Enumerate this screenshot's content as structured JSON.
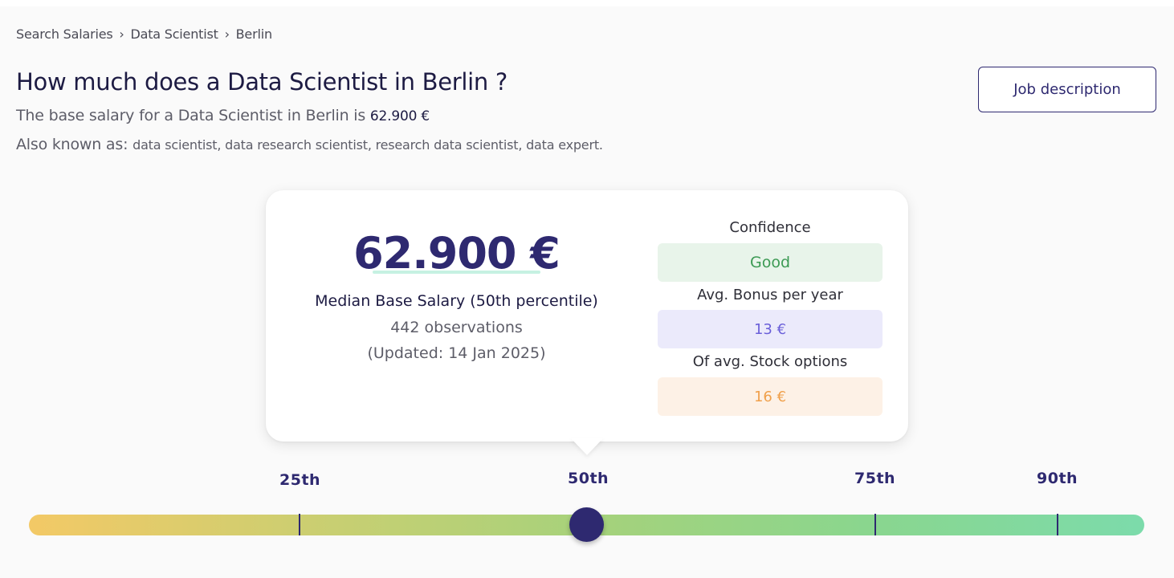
{
  "breadcrumb": {
    "items": [
      "Search Salaries",
      "Data Scientist",
      "Berlin"
    ],
    "separator": "›"
  },
  "header": {
    "title": "How much does a Data Scientist in Berlin ?",
    "base_prefix": "The base salary for a Data Scientist in Berlin is",
    "base_amount": "62.900 €",
    "aka_prefix": "Also known as:",
    "aka_list": "data scientist, data research scientist, research data scientist, data expert.",
    "job_button_label": "Job description"
  },
  "summary_card": {
    "median_value": "62.900 €",
    "median_label": "Median Base Salary (50th percentile)",
    "observations": "442 observations",
    "updated": "(Updated: 14 Jan 2025)",
    "confidence_heading": "Confidence",
    "confidence_value": "Good",
    "bonus_heading": "Avg. Bonus per year",
    "bonus_value": "13 €",
    "stock_heading": "Of avg. Stock options",
    "stock_value": "16 €"
  },
  "percentile_bar": {
    "labels": [
      "25th",
      "50th",
      "75th",
      "90th"
    ],
    "selected": "50th",
    "colors": {
      "start": "#f3c966",
      "end": "#7cdbab",
      "knob": "#2e2970"
    }
  },
  "colors": {
    "primary": "#2e2970",
    "good": "#3c9a54",
    "bonus": "#6a5fd9",
    "stock": "#f0a04b"
  }
}
